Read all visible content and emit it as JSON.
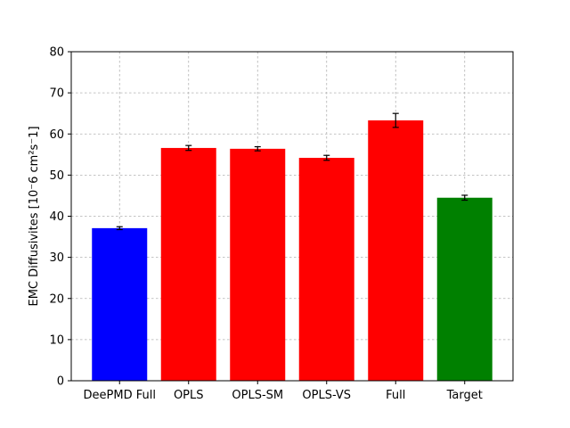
{
  "chart_data": {
    "type": "bar",
    "title": "",
    "xlabel": "",
    "ylabel": "EMC Diffusivites [10^-6 cm^2s^-1]",
    "ylabel_display": "EMC Diffusivites [10⁻6 cm²s⁻1]",
    "categories": [
      "DeePMD Full",
      "OPLS",
      "OPLS-SM",
      "OPLS-VS",
      "Full",
      "Target"
    ],
    "values": [
      37.1,
      56.6,
      56.4,
      54.2,
      63.3,
      44.5
    ],
    "errors": [
      0.35,
      0.6,
      0.5,
      0.6,
      1.7,
      0.6
    ],
    "colors": [
      "#0000ff",
      "#ff0000",
      "#ff0000",
      "#ff0000",
      "#ff0000",
      "#008000"
    ],
    "ylim": [
      0,
      80
    ],
    "yticks": [
      0,
      10,
      20,
      30,
      40,
      50,
      60,
      70,
      80
    ],
    "grid": true,
    "legend": "none"
  }
}
